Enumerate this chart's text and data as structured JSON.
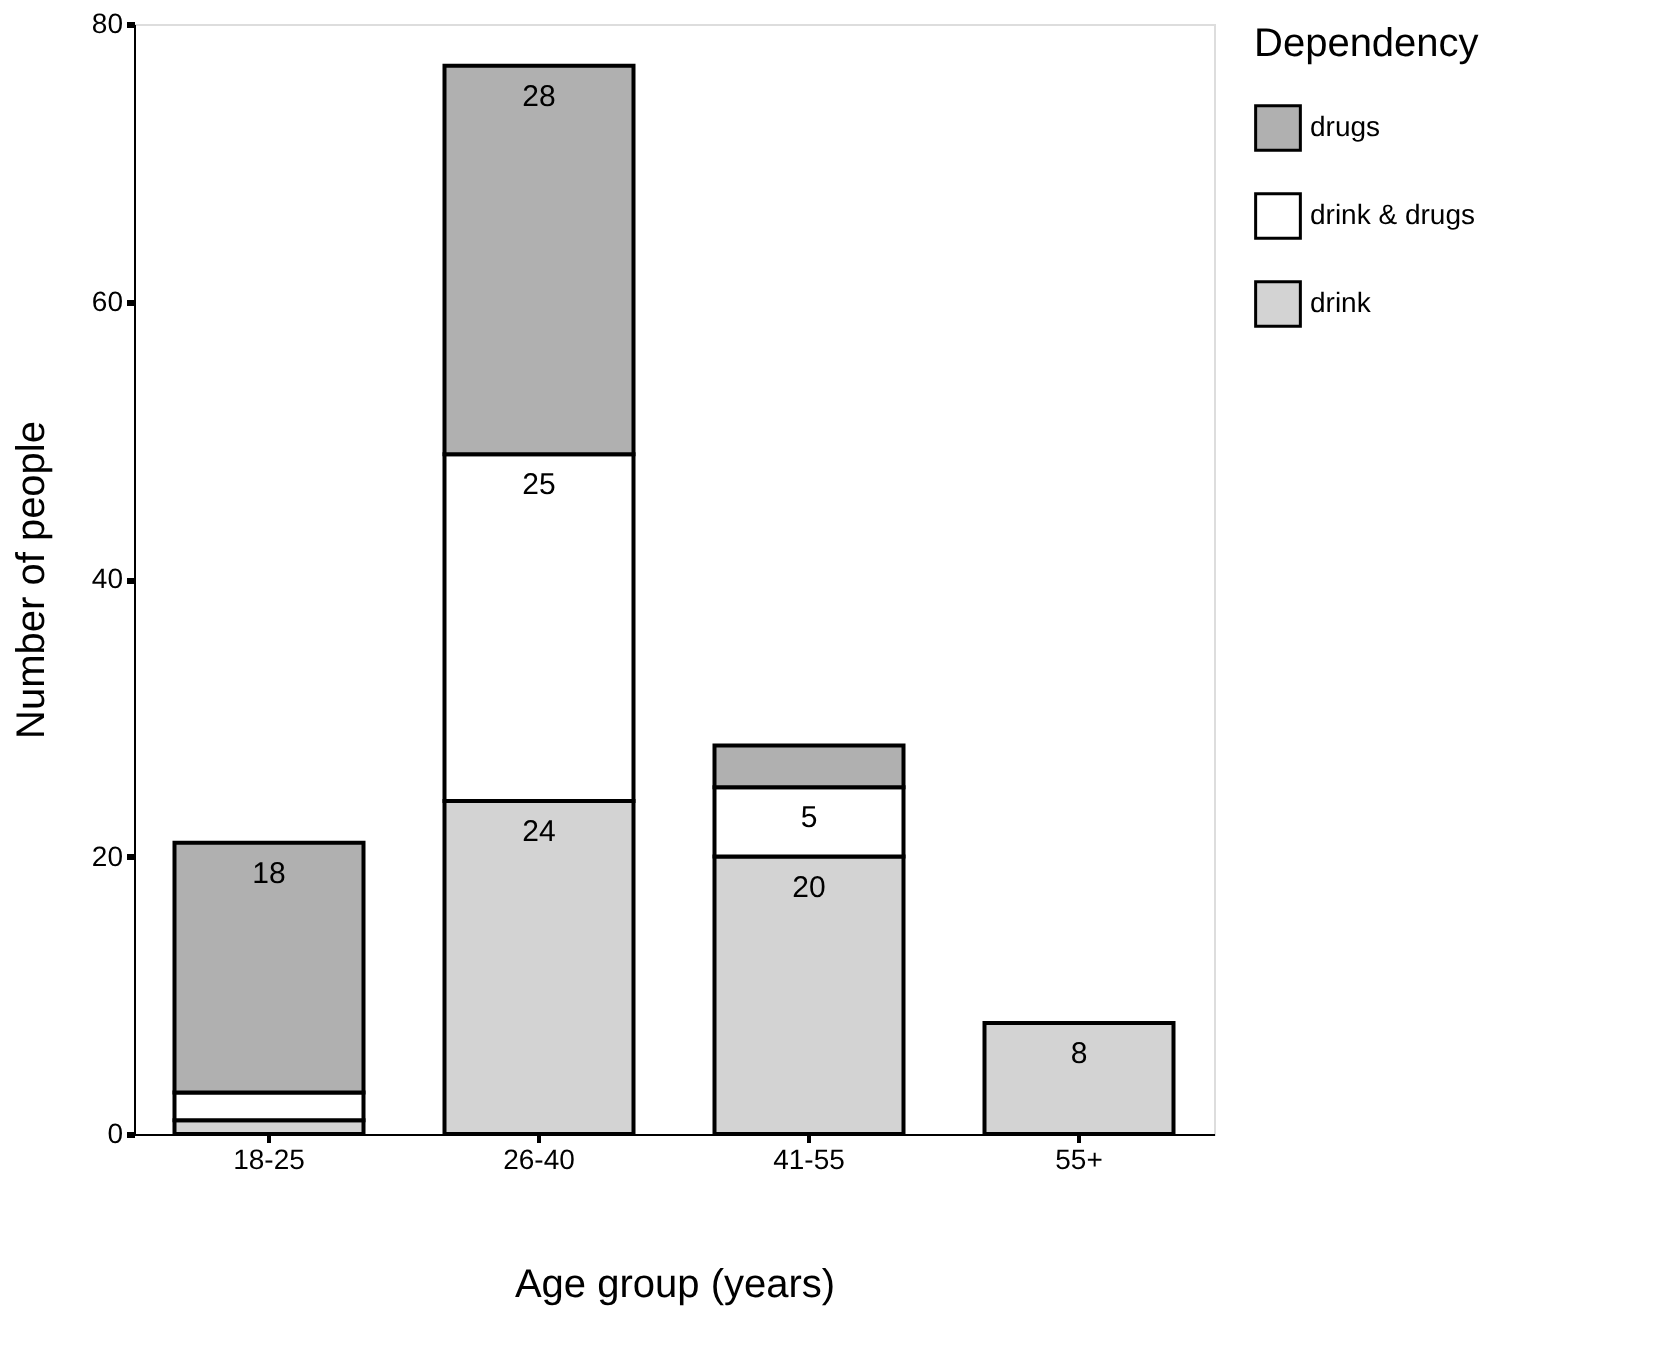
{
  "chart_data": {
    "type": "bar",
    "stacked": true,
    "xlabel": "Age group (years)",
    "ylabel": "Number of people",
    "legend_title": "Dependency",
    "categories": [
      "18-25",
      "26-40",
      "41-55",
      "55+"
    ],
    "series": [
      {
        "name": "drink",
        "color": "#d3d3d3",
        "values": [
          1,
          24,
          20,
          8
        ],
        "value_labels": [
          null,
          "24",
          "20",
          "8"
        ]
      },
      {
        "name": "drink & drugs",
        "color": "#ffffff",
        "values": [
          2,
          25,
          5,
          null
        ],
        "value_labels": [
          null,
          "25",
          "5",
          null
        ]
      },
      {
        "name": "drugs",
        "color": "#b0b0b0",
        "values": [
          18,
          28,
          3,
          null
        ],
        "value_labels": [
          "18",
          "28",
          null,
          null
        ]
      }
    ],
    "ylim": [
      0,
      80
    ],
    "yticks": [
      0,
      20,
      40,
      60,
      80
    ],
    "grid": false,
    "legend": "right"
  }
}
